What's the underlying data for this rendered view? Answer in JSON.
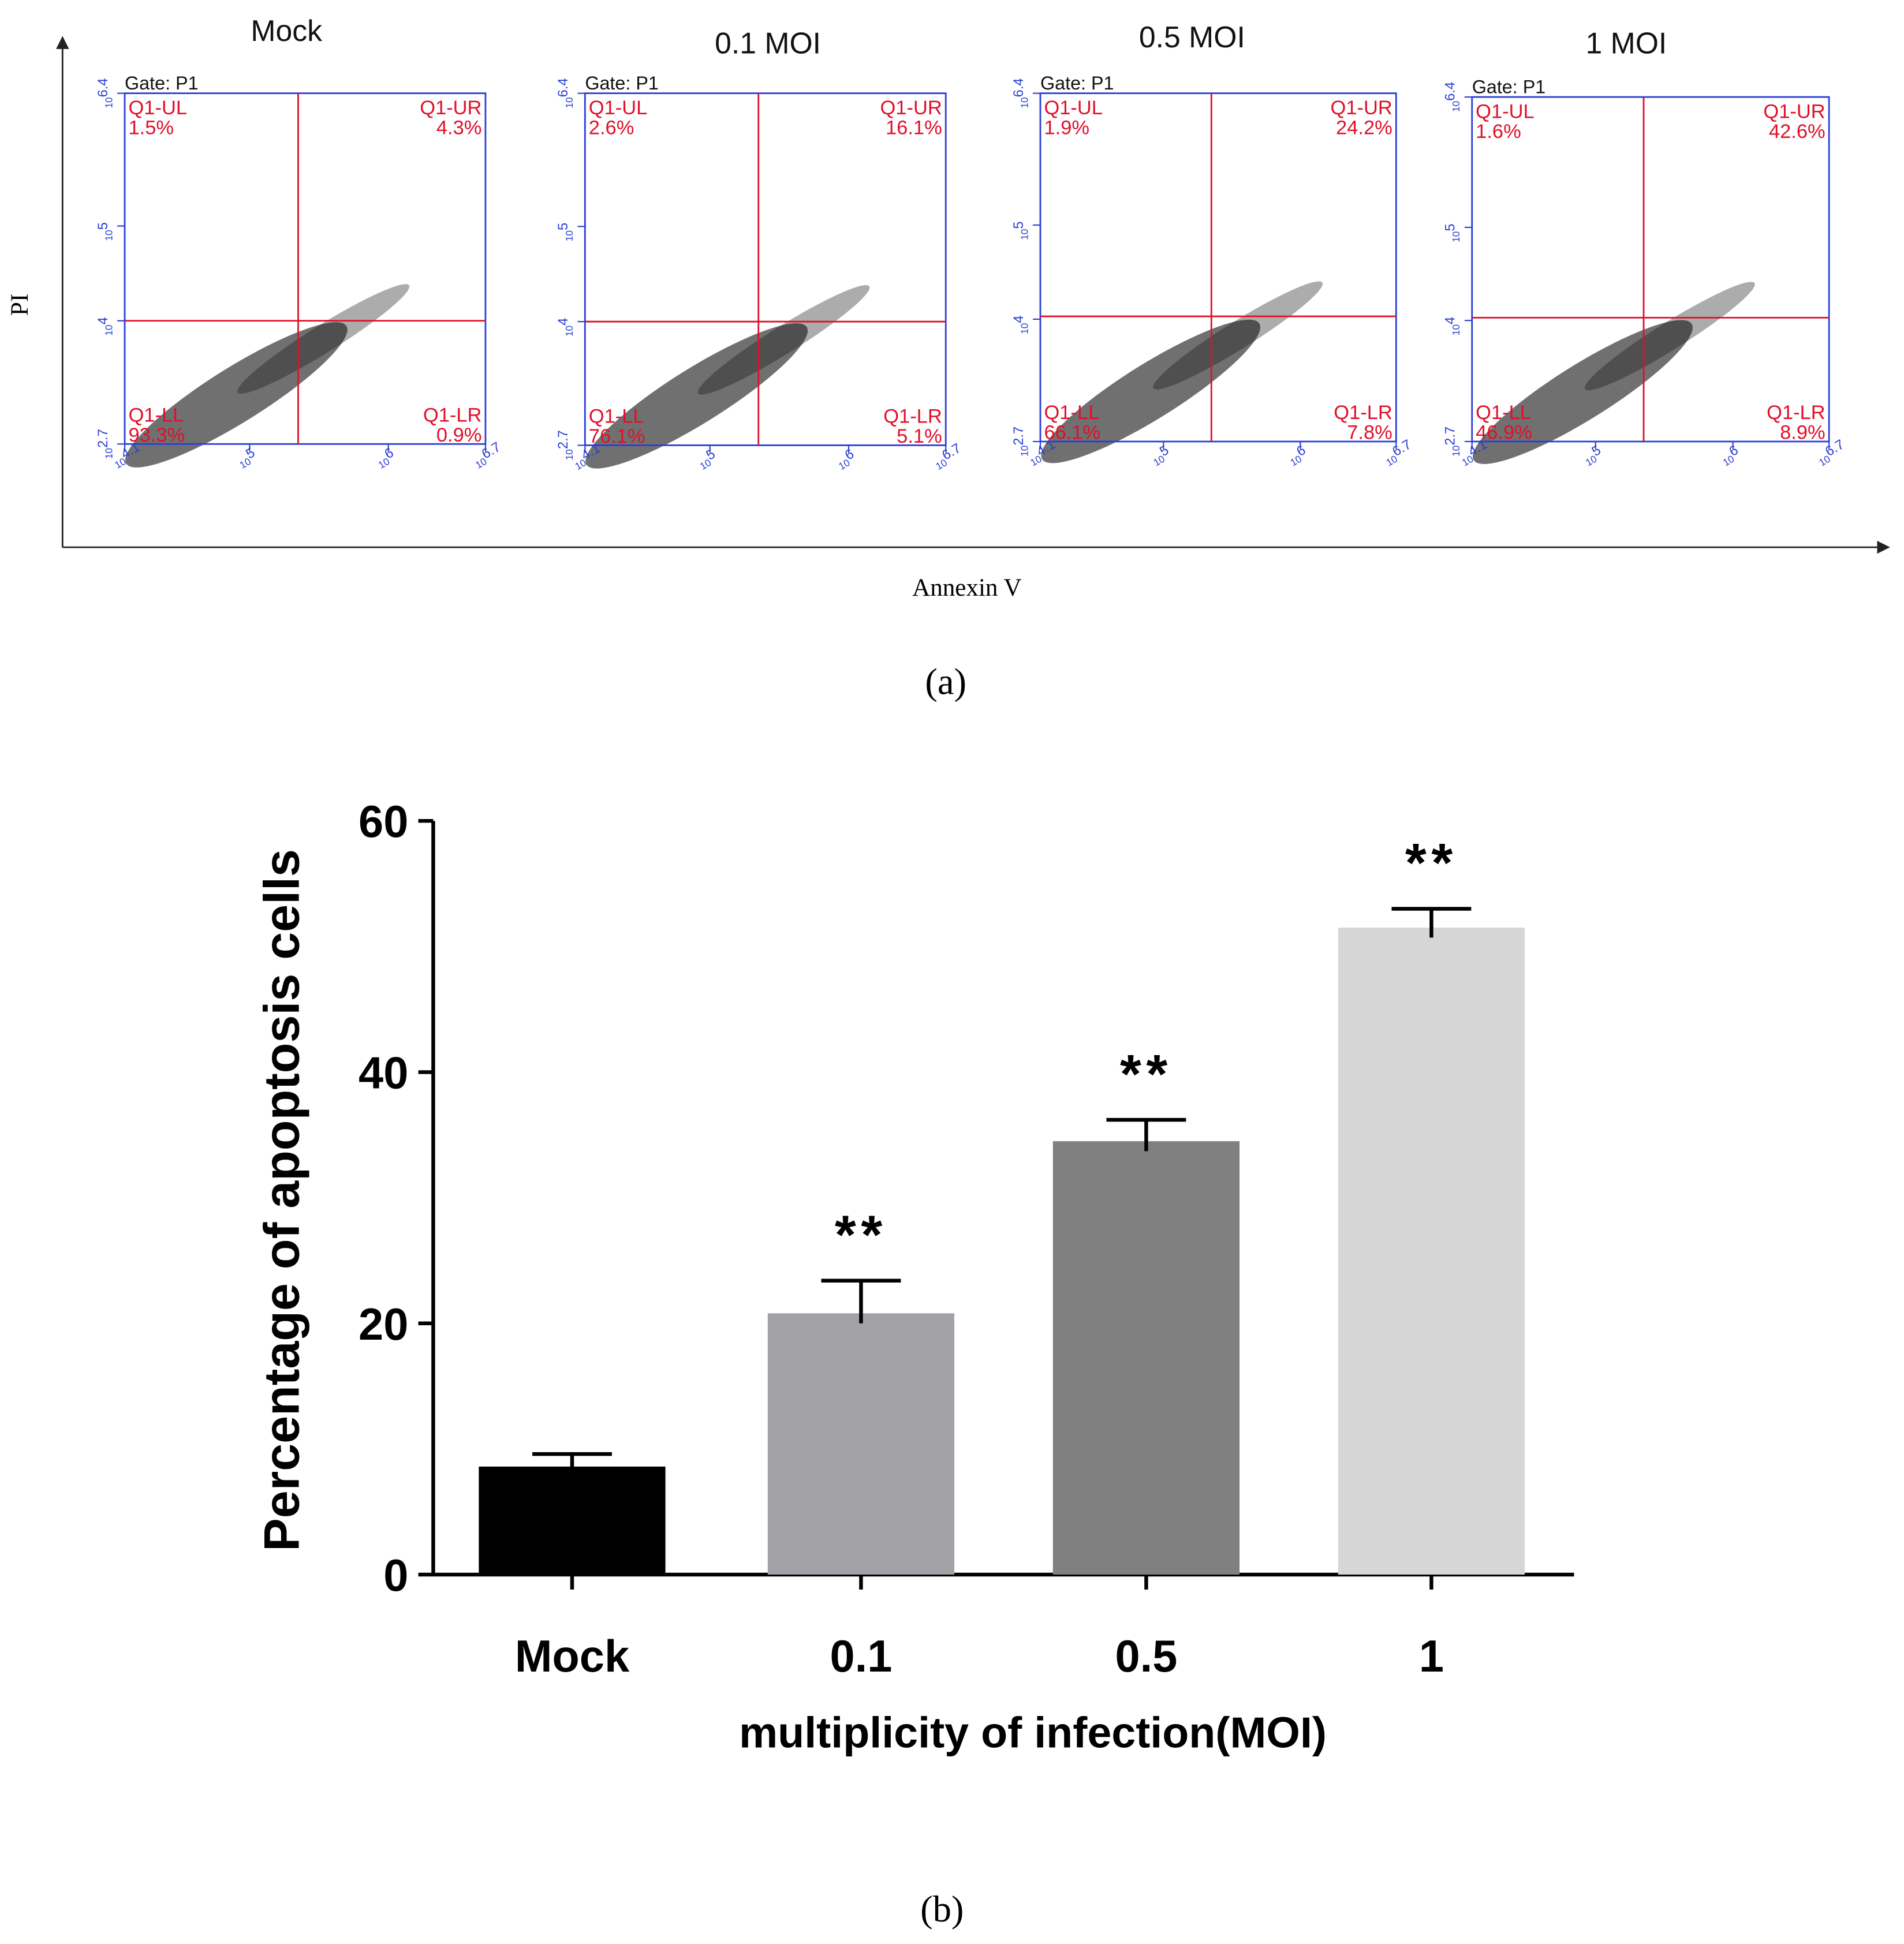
{
  "chart_data": [
    {
      "type": "flow",
      "x_label": "Annexin V",
      "y_label": "PI",
      "panel_label": "(a)",
      "log_base": 10,
      "xlim": [
        4.1,
        6.7
      ],
      "ylim": [
        2.7,
        6.4
      ],
      "xticks": [
        4.1,
        5,
        6,
        6.7
      ],
      "yticks": [
        2.7,
        4,
        5,
        6.4
      ],
      "gate_label": "Gate: P1",
      "quadrant_names": [
        "Q1-UL",
        "Q1-UR",
        "Q1-LL",
        "Q1-LR"
      ],
      "plots": [
        {
          "title": "Mock",
          "gate": {
            "x": 5.35,
            "y": 4.0
          },
          "values": [
            1.5,
            4.3,
            93.3,
            0.9
          ],
          "value_labels": [
            "1.5%",
            "4.3%",
            "93.3%",
            "0.9%"
          ]
        },
        {
          "title": "0.1 MOI",
          "gate": {
            "x": 5.35,
            "y": 4.0
          },
          "values": [
            2.6,
            16.1,
            76.1,
            5.1
          ],
          "value_labels": [
            "2.6%",
            "16.1%",
            "76.1%",
            "5.1%"
          ]
        },
        {
          "title": "0.5 MOI",
          "gate": {
            "x": 5.35,
            "y": 4.03
          },
          "values": [
            1.9,
            24.2,
            66.1,
            7.8
          ],
          "value_labels": [
            "1.9%",
            "24.2%",
            "66.1%",
            "7.8%"
          ]
        },
        {
          "title": "1 MOI",
          "gate": {
            "x": 5.35,
            "y": 4.03
          },
          "values": [
            1.6,
            42.6,
            46.9,
            8.9
          ],
          "value_labels": [
            "1.6%",
            "42.6%",
            "46.9%",
            "8.9%"
          ]
        }
      ]
    },
    {
      "type": "bar",
      "y_label": "Percentage of apoptosis cells",
      "x_label": "multiplicity of infection(MOI)",
      "panel_label": "(b)",
      "categories": [
        "Mock",
        "0.1",
        "0.5",
        "1"
      ],
      "values": [
        8.6,
        20.8,
        34.5,
        51.5
      ],
      "errors": [
        1.0,
        2.6,
        1.7,
        1.5
      ],
      "colors": [
        "#000000",
        "#a2a2a6",
        "#808080",
        "#d6d6d6"
      ],
      "significance": [
        null,
        "**",
        "**",
        "**"
      ],
      "ylim": [
        0,
        60
      ],
      "yticks": [
        0,
        20,
        40,
        60
      ]
    }
  ]
}
